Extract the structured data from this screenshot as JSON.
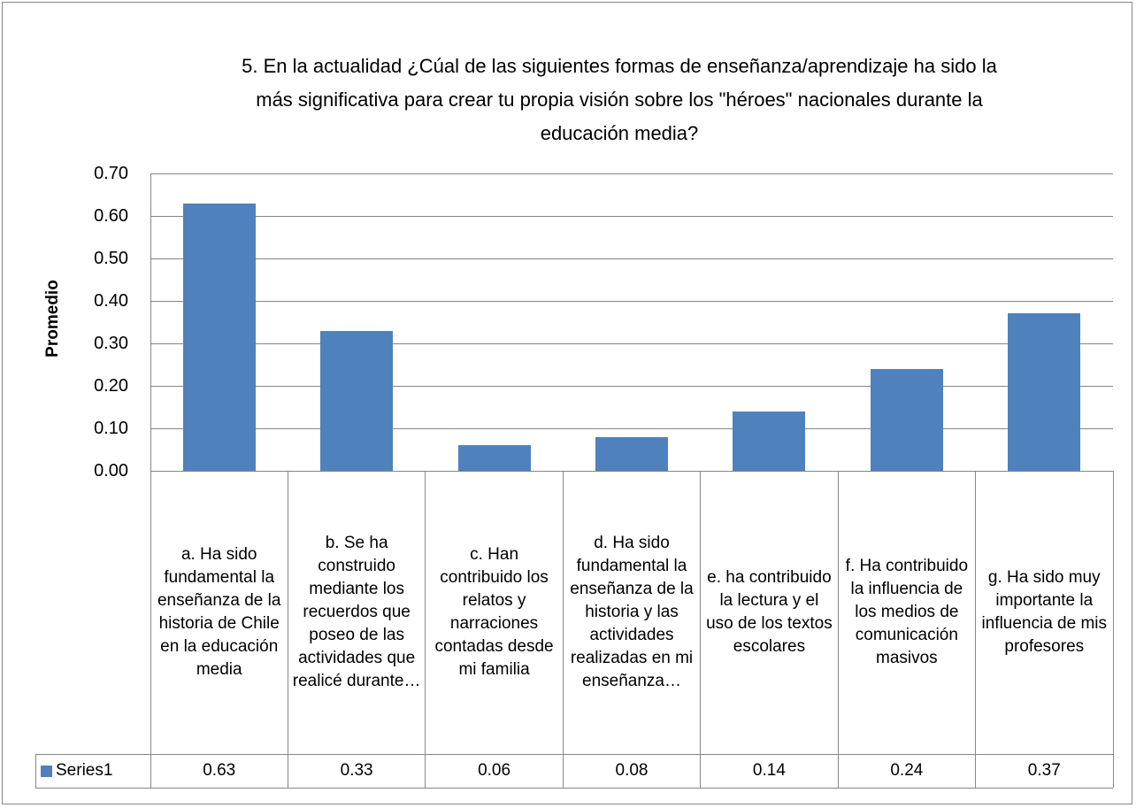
{
  "chart_data": {
    "type": "bar",
    "title": "5. En  la actualidad ¿Cúal de las siguientes formas de enseñanza/aprendizaje ha sido la más significativa para crear tu propia visión sobre los \"héroes\" nacionales durante la educación media?",
    "y_label": "Promedio",
    "categories": [
      "a. Ha sido fundamental la enseñanza de la historia de Chile en la educación media",
      "b. Se ha construido mediante los recuerdos que poseo de las actividades que realicé durante…",
      "c. Han contribuido los relatos y narraciones contadas desde mi familia",
      "d. Ha sido fundamental la enseñanza de la historia y las actividades realizadas en mi enseñanza…",
      "e. ha contribuido la lectura y el uso de los textos escolares",
      "f. Ha contribuido la influencia de los medios de comunicación masivos",
      "g. Ha sido muy importante la influencia de mis profesores"
    ],
    "series": [
      {
        "name": "Series1",
        "color": "#4f81bd",
        "values": [
          0.63,
          0.33,
          0.06,
          0.08,
          0.14,
          0.24,
          0.37
        ]
      }
    ],
    "ylim": [
      0,
      0.7
    ],
    "yticks": [
      {
        "value": 0,
        "label": "0.00"
      },
      {
        "value": 0.1,
        "label": "0.10"
      },
      {
        "value": 0.2,
        "label": "0.20"
      },
      {
        "value": 0.3,
        "label": "0.30"
      },
      {
        "value": 0.4,
        "label": "0.40"
      },
      {
        "value": 0.5,
        "label": "0.50"
      },
      {
        "value": 0.6,
        "label": "0.60"
      },
      {
        "value": 0.7,
        "label": "0.70"
      }
    ],
    "grid": true,
    "data_table": true
  }
}
